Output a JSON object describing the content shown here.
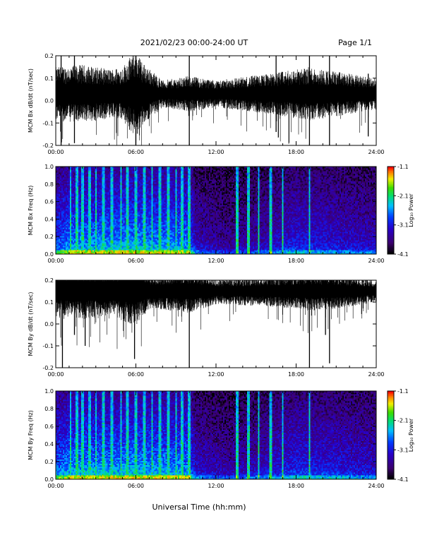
{
  "header": {
    "title": "2021/02/23  00:00-24:00 UT",
    "page": "Page 1/1"
  },
  "footer": {
    "xlabel": "Universal Time (hh:mm)"
  },
  "colorbar": {
    "label": "Log₁₀ Power",
    "ticks": [
      "-1.1",
      "-2.1",
      "-3.1",
      "-4.1"
    ],
    "range": [
      -4.1,
      -1.1
    ],
    "colormap": "rainbow: black, purple, blue, cyan, green, yellow, orange, red"
  },
  "chart_data": [
    {
      "type": "line",
      "ylabel": "MCM Bx dB/dt (nT/sec)",
      "x_ticks": [
        "00:00",
        "06:00",
        "12:00",
        "18:00",
        "24:00"
      ],
      "xlim": [
        0,
        24
      ],
      "ylim": [
        -0.2,
        0.2
      ],
      "y_ticks": [
        "0.2",
        "0.1",
        "0.0",
        "-0.1",
        "-0.2"
      ],
      "series": [
        {
          "baseline": 0.03,
          "color": "#000000",
          "amplitude_profile_hours": [
            0,
            2,
            4,
            5,
            6,
            6.5,
            8,
            10,
            12,
            16,
            19,
            21,
            24
          ],
          "amplitude_profile_values": [
            0.12,
            0.13,
            0.11,
            0.12,
            0.2,
            0.14,
            0.06,
            0.08,
            0.06,
            0.09,
            0.12,
            0.1,
            0.07
          ],
          "spikes": [
            {
              "t": 0.4,
              "low": -0.2,
              "high": 0.2
            },
            {
              "t": 1.4,
              "low": -0.19,
              "high": 0.2
            },
            {
              "t": 6.0,
              "low": -0.2,
              "high": 0.2
            },
            {
              "t": 10.0,
              "low": -0.2,
              "high": 0.2
            },
            {
              "t": 16.5,
              "low": -0.14,
              "high": 0.2
            },
            {
              "t": 19.0,
              "low": -0.2,
              "high": 0.2
            },
            {
              "t": 20.5,
              "low": -0.2,
              "high": 0.2
            },
            {
              "t": 23.4,
              "low": -0.16,
              "high": 0.12
            }
          ]
        }
      ]
    },
    {
      "type": "heatmap",
      "ylabel": "MCM Bx Freq (Hz)",
      "x_ticks": [
        "00:00",
        "06:00",
        "12:00",
        "18:00",
        "24:00"
      ],
      "xlim": [
        0,
        24
      ],
      "ylim": [
        0,
        1.0
      ],
      "y_ticks": [
        "1.0",
        "0.8",
        "0.6",
        "0.4",
        "0.2",
        "0.0"
      ],
      "value_label": "Log₁₀ Power",
      "bright_columns_hours": [
        1.1,
        1.6,
        2.0,
        2.5,
        3.0,
        3.6,
        4.2,
        4.9,
        5.4,
        6.0,
        6.6,
        7.2,
        7.8,
        8.4,
        9.0,
        9.5,
        10.0,
        13.6,
        14.4,
        15.2,
        16.1,
        17.0,
        19.0
      ],
      "activity_profile_hours": [
        0,
        1,
        6,
        10,
        10.5,
        13,
        16,
        18,
        20,
        24
      ],
      "activity_profile_values": [
        0.75,
        0.9,
        0.95,
        0.9,
        0.45,
        0.3,
        0.45,
        0.6,
        0.55,
        0.45
      ]
    },
    {
      "type": "line",
      "ylabel": "MCM By dB/dt (nT/sec)",
      "x_ticks": [
        "00:00",
        "06:00",
        "12:00",
        "18:00",
        "24:00"
      ],
      "xlim": [
        0,
        24
      ],
      "ylim": [
        -0.2,
        0.2
      ],
      "y_ticks": [
        "0.2",
        "0.1",
        "0.0",
        "-0.1",
        "-0.2"
      ],
      "series": [
        {
          "baseline": 0.15,
          "color": "#000000",
          "amplitude_profile_hours": [
            0,
            2,
            4,
            6,
            7,
            10,
            12,
            16,
            19,
            21,
            24
          ],
          "amplitude_profile_values": [
            0.12,
            0.13,
            0.11,
            0.16,
            0.08,
            0.1,
            0.06,
            0.07,
            0.09,
            0.08,
            0.05
          ],
          "spikes": [
            {
              "t": 0.5,
              "low": -0.2,
              "high": 0.2
            },
            {
              "t": 1.4,
              "low": -0.05,
              "high": 0.2
            },
            {
              "t": 2.2,
              "low": -0.1,
              "high": 0.2
            },
            {
              "t": 5.9,
              "low": -0.16,
              "high": 0.2
            },
            {
              "t": 10.0,
              "low": -0.2,
              "high": 0.2
            },
            {
              "t": 19.0,
              "low": -0.2,
              "high": 0.2
            },
            {
              "t": 20.5,
              "low": -0.18,
              "high": 0.2
            },
            {
              "t": 20.2,
              "low": -0.05,
              "high": 0.2
            }
          ]
        }
      ]
    },
    {
      "type": "heatmap",
      "ylabel": "MCM By Freq (Hz)",
      "x_ticks": [
        "00:00",
        "06:00",
        "12:00",
        "18:00",
        "24:00"
      ],
      "xlim": [
        0,
        24
      ],
      "ylim": [
        0,
        1.0
      ],
      "y_ticks": [
        "1.0",
        "0.8",
        "0.6",
        "0.4",
        "0.2",
        "0.0"
      ],
      "value_label": "Log₁₀ Power",
      "bright_columns_hours": [
        1.1,
        1.6,
        2.0,
        2.5,
        3.0,
        3.6,
        4.2,
        4.9,
        5.4,
        6.0,
        6.6,
        7.2,
        7.8,
        8.4,
        9.0,
        9.5,
        10.0,
        13.6,
        14.4,
        15.2,
        16.1,
        17.0,
        19.0
      ],
      "activity_profile_hours": [
        0,
        1,
        6,
        10,
        10.5,
        13,
        16,
        18,
        20,
        24
      ],
      "activity_profile_values": [
        0.8,
        0.95,
        0.95,
        0.9,
        0.5,
        0.35,
        0.5,
        0.65,
        0.6,
        0.5
      ]
    }
  ]
}
